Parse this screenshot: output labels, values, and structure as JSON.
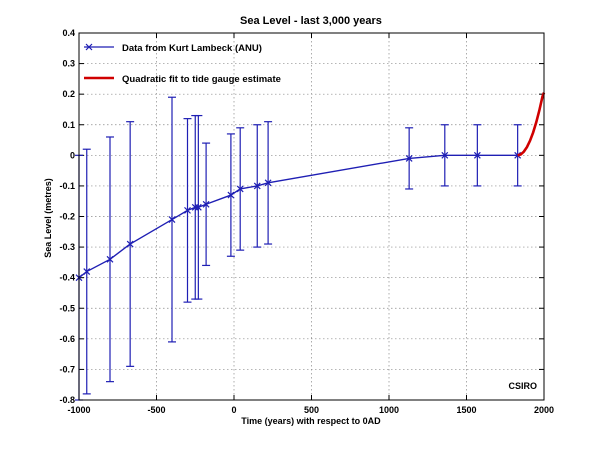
{
  "chart_data": {
    "type": "line",
    "title": "Sea Level - last 3,000 years",
    "xlabel": "Time (years) with respect to 0AD",
    "ylabel": "Sea Level (metres)",
    "xlim": [
      -1000,
      2000
    ],
    "ylim": [
      -0.8,
      0.4
    ],
    "grid": true,
    "legend_position": "top-left",
    "x_ticks": [
      -1000,
      -500,
      0,
      500,
      1000,
      1500,
      2000
    ],
    "x_tick_labels": [
      "-1000",
      "-500",
      "0",
      "500",
      "1000",
      "1500",
      "2000"
    ],
    "y_ticks": [
      -0.8,
      -0.7,
      -0.6,
      -0.5,
      -0.4,
      -0.3,
      -0.2,
      -0.1,
      0,
      0.1,
      0.2,
      0.3,
      0.4
    ],
    "y_tick_labels": [
      "-0.8",
      "-0.7",
      "-0.6",
      "-0.5",
      "-0.4",
      "-0.3",
      "-0.2",
      "-0.1",
      "0",
      "0.1",
      "0.2",
      "0.3",
      "0.4"
    ],
    "annotation": "CSIRO",
    "series": [
      {
        "name": "Data from Kurt Lambeck (ANU)",
        "color": "#1f1fb4",
        "marker": "x",
        "x": [
          -1000,
          -950,
          -800,
          -670,
          -400,
          -300,
          -250,
          -230,
          -180,
          -20,
          40,
          150,
          220,
          1130,
          1360,
          1570,
          1830
        ],
        "y": [
          -0.4,
          -0.38,
          -0.34,
          -0.29,
          -0.21,
          -0.18,
          -0.17,
          -0.17,
          -0.16,
          -0.13,
          -0.11,
          -0.1,
          -0.09,
          -0.01,
          0.0,
          0.0,
          0.0
        ],
        "y_low": [
          -0.8,
          -0.78,
          -0.74,
          -0.69,
          -0.61,
          -0.48,
          -0.47,
          -0.47,
          -0.36,
          -0.33,
          -0.31,
          -0.3,
          -0.29,
          -0.11,
          -0.1,
          -0.1,
          -0.1
        ],
        "y_high": [
          0.0,
          0.02,
          0.06,
          0.11,
          0.19,
          0.12,
          0.13,
          0.13,
          0.04,
          0.07,
          0.09,
          0.1,
          0.11,
          0.09,
          0.1,
          0.1,
          0.1
        ]
      },
      {
        "name": "Quadratic fit to tide gauge estimate",
        "color": "#d00000",
        "x": [
          1830,
          1850,
          1870,
          1890,
          1910,
          1930,
          1950,
          1970,
          1990,
          2000
        ],
        "y": [
          0.0,
          0.003,
          0.012,
          0.027,
          0.048,
          0.075,
          0.108,
          0.147,
          0.192,
          0.205
        ]
      }
    ]
  }
}
